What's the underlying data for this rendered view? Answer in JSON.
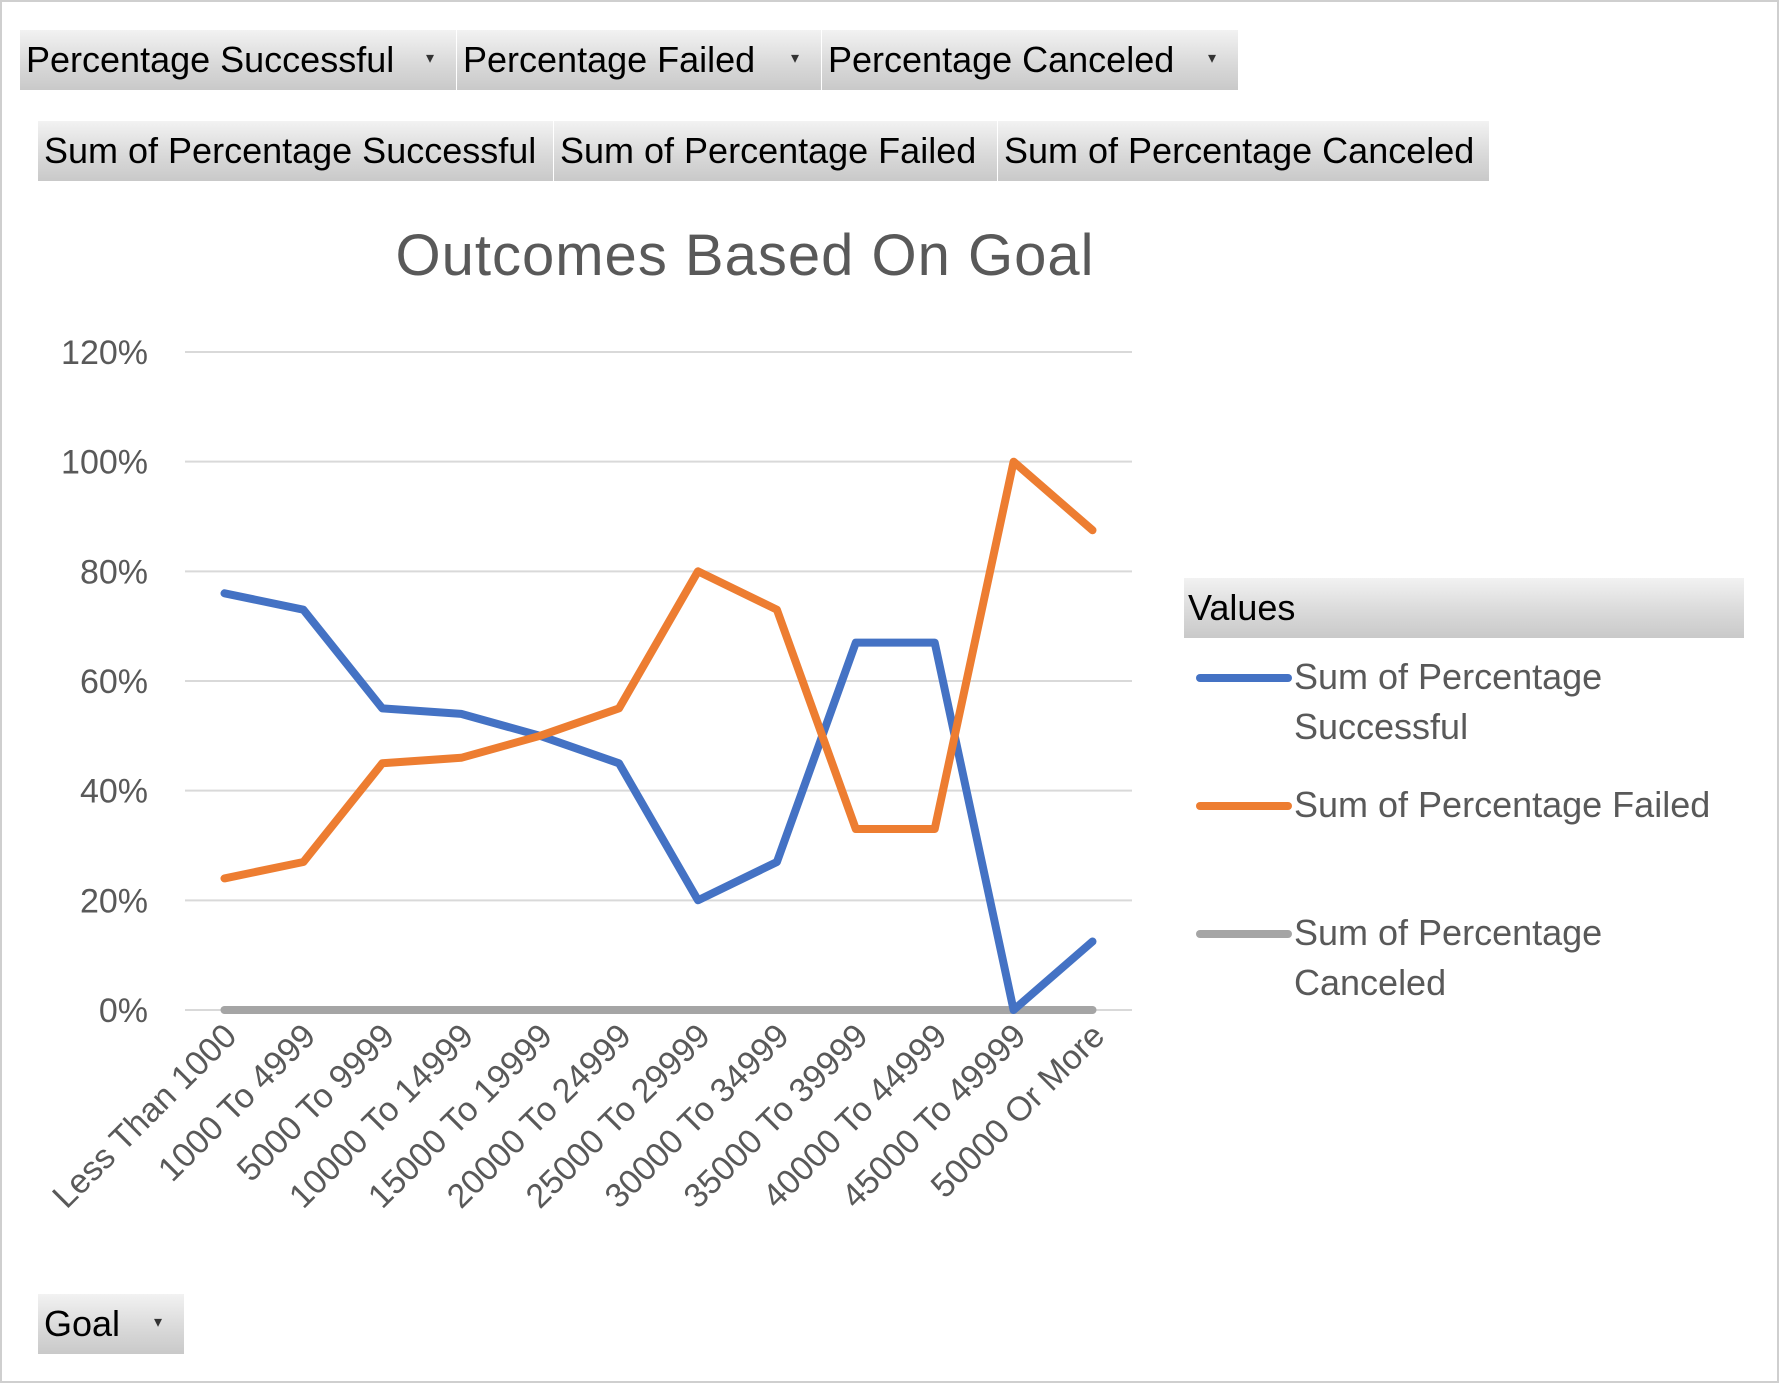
{
  "filters": {
    "page_fields": [
      {
        "label": "Percentage  Successful",
        "arrow": "▾"
      },
      {
        "label": "Percentage  Failed",
        "arrow": "▾"
      },
      {
        "label": "Percentage  Canceled",
        "arrow": "▾"
      }
    ],
    "value_fields": [
      {
        "label": "Sum of Percentage  Successful"
      },
      {
        "label": "Sum of Percentage  Failed"
      },
      {
        "label": "Sum of Percentage  Canceled"
      }
    ],
    "axis_field": {
      "label": "Goal",
      "arrow": "▾"
    }
  },
  "legend": {
    "header": "Values"
  },
  "colors": {
    "successful": "#4472C4",
    "failed": "#ED7D31",
    "canceled": "#A5A5A5",
    "gridline": "#d9d9d9",
    "axis_text": "#595959"
  },
  "chart_data": {
    "type": "line",
    "title": "Outcomes Based On Goal",
    "xlabel": "",
    "ylabel": "",
    "categories": [
      "Less Than 1000",
      "1000 To 4999",
      "5000 To 9999",
      "10000 To 14999",
      "15000 To 19999",
      "20000 To 24999",
      "25000 To 29999",
      "30000 To 34999",
      "35000 To 39999",
      "40000 To 44999",
      "45000 To 49999",
      "50000 Or More"
    ],
    "series": [
      {
        "name": "Sum of Percentage Successful",
        "values": [
          0.76,
          0.73,
          0.55,
          0.54,
          0.5,
          0.45,
          0.2,
          0.27,
          0.67,
          0.67,
          0.0,
          0.125
        ]
      },
      {
        "name": "Sum of Percentage Failed",
        "values": [
          0.24,
          0.27,
          0.45,
          0.46,
          0.5,
          0.55,
          0.8,
          0.73,
          0.33,
          0.33,
          1.0,
          0.875
        ]
      },
      {
        "name": "Sum of Percentage Canceled",
        "values": [
          0,
          0,
          0,
          0,
          0,
          0,
          0,
          0,
          0,
          0,
          0,
          0
        ]
      }
    ],
    "y_ticks": [
      "0%",
      "20%",
      "40%",
      "60%",
      "80%",
      "100%",
      "120%"
    ],
    "ylim": [
      0,
      1.2
    ],
    "grid": true,
    "legend_position": "right"
  }
}
